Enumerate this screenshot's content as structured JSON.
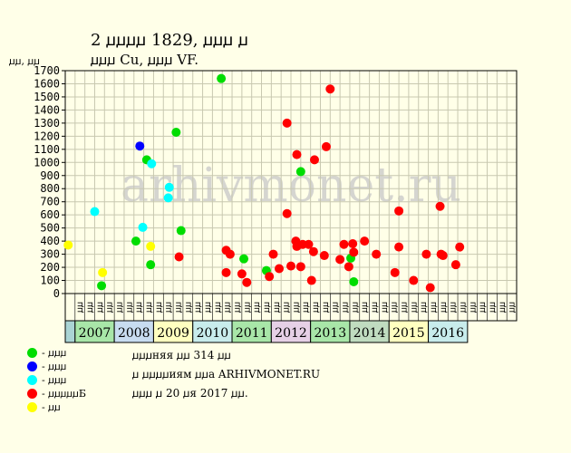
{
  "title": "2 ꙡꙡꙡꙡ 1829, ꙡꙡꙡ ꙡ",
  "subtitle": "ꙡꙡꙡ Cu, ꙡꙡꙡ VF.",
  "ylabel": "ꙡꙡ, ꙡꙡ",
  "watermark": "arhivmonet.ru",
  "notes": [
    "ꙡꙡꙡняя ꙡꙡ 314 ꙡꙡ",
    "ꙡ ꙡꙡꙡꙡиям ꙡꙡа ARHIVMONET.RU",
    "ꙡꙡꙡ ꙡ 20 ꙡя 2017 ꙡꙡ."
  ],
  "legend": [
    {
      "label": "- ꙡꙡꙡ",
      "color": "#00dd00"
    },
    {
      "label": "- ꙡꙡꙡ",
      "color": "#0000ff"
    },
    {
      "label": "- ꙡꙡꙡ",
      "color": "#00ffff"
    },
    {
      "label": "- ꙡꙡꙡꙡꙡБ",
      "color": "#ff0000"
    },
    {
      "label": "- ꙡꙡ",
      "color": "#ffff00"
    }
  ],
  "chart_data": {
    "type": "scatter",
    "ylim": [
      0,
      1700
    ],
    "yticks": [
      0,
      100,
      200,
      300,
      400,
      500,
      600,
      700,
      800,
      900,
      1000,
      1100,
      1200,
      1300,
      1400,
      1500,
      1600,
      1700
    ],
    "grid": true,
    "quarter_labels": [
      "ꙡꙡ",
      "ꙡꙡ",
      "ꙡꙡ",
      "ꙡꙡ",
      "ꙡꙡ",
      "ꙡꙡ",
      "ꙡꙡ",
      "ꙡꙡ",
      "ꙡꙡ",
      "ꙡꙡ",
      "ꙡꙡ",
      "ꙡꙡ",
      "ꙡꙡ",
      "ꙡꙡ",
      "ꙡꙡ",
      "ꙡꙡ",
      "ꙡꙡ",
      "ꙡꙡ",
      "ꙡꙡ",
      "ꙡꙡ",
      "ꙡꙡ",
      "ꙡꙡ",
      "ꙡꙡ",
      "ꙡꙡ",
      "ꙡꙡ",
      "ꙡꙡ",
      "ꙡꙡ",
      "ꙡꙡ",
      "ꙡꙡ",
      "ꙡꙡ",
      "ꙡꙡ",
      "ꙡꙡ",
      "ꙡꙡ",
      "ꙡꙡ",
      "ꙡꙡ",
      "ꙡꙡ",
      "ꙡꙡ",
      "ꙡꙡ",
      "ꙡꙡ",
      "ꙡꙡ",
      "ꙡꙡ",
      "ꙡꙡ",
      "ꙡꙡ",
      "ꙡꙡ",
      "ꙡꙡ"
    ],
    "years": [
      {
        "label": "",
        "span": 1,
        "color": "#aad4d4"
      },
      {
        "label": "2007",
        "span": 4,
        "color": "#a8e6a8"
      },
      {
        "label": "2008",
        "span": 4,
        "color": "#c8dcf0"
      },
      {
        "label": "2009",
        "span": 4,
        "color": "#ffffc0"
      },
      {
        "label": "2010",
        "span": 4,
        "color": "#c8ecec"
      },
      {
        "label": "2011",
        "span": 4,
        "color": "#a8e6a8"
      },
      {
        "label": "2012",
        "span": 4,
        "color": "#e6d0e6"
      },
      {
        "label": "2013",
        "span": 4,
        "color": "#a8e6a8"
      },
      {
        "label": "2014",
        "span": 4,
        "color": "#c0dcc0"
      },
      {
        "label": "2015",
        "span": 4,
        "color": "#ffffc0"
      },
      {
        "label": "2016",
        "span": 4,
        "color": "#c8ecec"
      }
    ],
    "points": [
      {
        "x": 0.3,
        "y": 370,
        "color": "#ffff00"
      },
      {
        "x": 3.0,
        "y": 625,
        "color": "#00ffff"
      },
      {
        "x": 3.7,
        "y": 60,
        "color": "#00dd00"
      },
      {
        "x": 3.8,
        "y": 160,
        "color": "#ffff00"
      },
      {
        "x": 7.2,
        "y": 400,
        "color": "#00dd00"
      },
      {
        "x": 7.6,
        "y": 1125,
        "color": "#0000ff"
      },
      {
        "x": 7.9,
        "y": 505,
        "color": "#00ffff"
      },
      {
        "x": 8.3,
        "y": 1020,
        "color": "#00dd00"
      },
      {
        "x": 8.8,
        "y": 990,
        "color": "#00ffff"
      },
      {
        "x": 8.7,
        "y": 220,
        "color": "#00dd00"
      },
      {
        "x": 8.7,
        "y": 360,
        "color": "#ffff00"
      },
      {
        "x": 10.6,
        "y": 810,
        "color": "#00ffff"
      },
      {
        "x": 10.5,
        "y": 730,
        "color": "#00ffff"
      },
      {
        "x": 11.3,
        "y": 1230,
        "color": "#00dd00"
      },
      {
        "x": 11.6,
        "y": 280,
        "color": "#ff0000"
      },
      {
        "x": 11.8,
        "y": 480,
        "color": "#00dd00"
      },
      {
        "x": 15.9,
        "y": 1640,
        "color": "#00dd00"
      },
      {
        "x": 16.4,
        "y": 330,
        "color": "#ff0000"
      },
      {
        "x": 16.8,
        "y": 300,
        "color": "#ff0000"
      },
      {
        "x": 16.4,
        "y": 160,
        "color": "#ff0000"
      },
      {
        "x": 18.0,
        "y": 150,
        "color": "#ff0000"
      },
      {
        "x": 18.2,
        "y": 265,
        "color": "#00dd00"
      },
      {
        "x": 18.5,
        "y": 85,
        "color": "#ff0000"
      },
      {
        "x": 20.5,
        "y": 175,
        "color": "#00dd00"
      },
      {
        "x": 20.8,
        "y": 130,
        "color": "#ff0000"
      },
      {
        "x": 21.2,
        "y": 300,
        "color": "#ff0000"
      },
      {
        "x": 21.8,
        "y": 190,
        "color": "#ff0000"
      },
      {
        "x": 22.6,
        "y": 1300,
        "color": "#ff0000"
      },
      {
        "x": 22.6,
        "y": 610,
        "color": "#ff0000"
      },
      {
        "x": 23.0,
        "y": 210,
        "color": "#ff0000"
      },
      {
        "x": 23.5,
        "y": 400,
        "color": "#ff0000"
      },
      {
        "x": 23.6,
        "y": 1060,
        "color": "#ff0000"
      },
      {
        "x": 23.6,
        "y": 360,
        "color": "#ff0000"
      },
      {
        "x": 24.0,
        "y": 930,
        "color": "#00dd00"
      },
      {
        "x": 24.0,
        "y": 205,
        "color": "#ff0000"
      },
      {
        "x": 24.2,
        "y": 375,
        "color": "#ff0000"
      },
      {
        "x": 24.8,
        "y": 375,
        "color": "#ff0000"
      },
      {
        "x": 25.1,
        "y": 100,
        "color": "#ff0000"
      },
      {
        "x": 25.3,
        "y": 320,
        "color": "#ff0000"
      },
      {
        "x": 25.4,
        "y": 1020,
        "color": "#ff0000"
      },
      {
        "x": 26.4,
        "y": 290,
        "color": "#ff0000"
      },
      {
        "x": 26.6,
        "y": 1120,
        "color": "#ff0000"
      },
      {
        "x": 27.0,
        "y": 1560,
        "color": "#ff0000"
      },
      {
        "x": 28.0,
        "y": 260,
        "color": "#ff0000"
      },
      {
        "x": 28.4,
        "y": 375,
        "color": "#ff0000"
      },
      {
        "x": 28.9,
        "y": 205,
        "color": "#ff0000"
      },
      {
        "x": 29.1,
        "y": 270,
        "color": "#00dd00"
      },
      {
        "x": 29.3,
        "y": 380,
        "color": "#ff0000"
      },
      {
        "x": 29.4,
        "y": 315,
        "color": "#ff0000"
      },
      {
        "x": 29.4,
        "y": 90,
        "color": "#00dd00"
      },
      {
        "x": 30.5,
        "y": 400,
        "color": "#ff0000"
      },
      {
        "x": 31.7,
        "y": 300,
        "color": "#ff0000"
      },
      {
        "x": 33.6,
        "y": 160,
        "color": "#ff0000"
      },
      {
        "x": 34.0,
        "y": 630,
        "color": "#ff0000"
      },
      {
        "x": 34.0,
        "y": 355,
        "color": "#ff0000"
      },
      {
        "x": 35.5,
        "y": 100,
        "color": "#ff0000"
      },
      {
        "x": 36.8,
        "y": 300,
        "color": "#ff0000"
      },
      {
        "x": 37.2,
        "y": 45,
        "color": "#ff0000"
      },
      {
        "x": 38.2,
        "y": 665,
        "color": "#ff0000"
      },
      {
        "x": 38.3,
        "y": 300,
        "color": "#ff0000"
      },
      {
        "x": 38.5,
        "y": 290,
        "color": "#ff0000"
      },
      {
        "x": 39.8,
        "y": 220,
        "color": "#ff0000"
      },
      {
        "x": 40.2,
        "y": 355,
        "color": "#ff0000"
      }
    ]
  }
}
